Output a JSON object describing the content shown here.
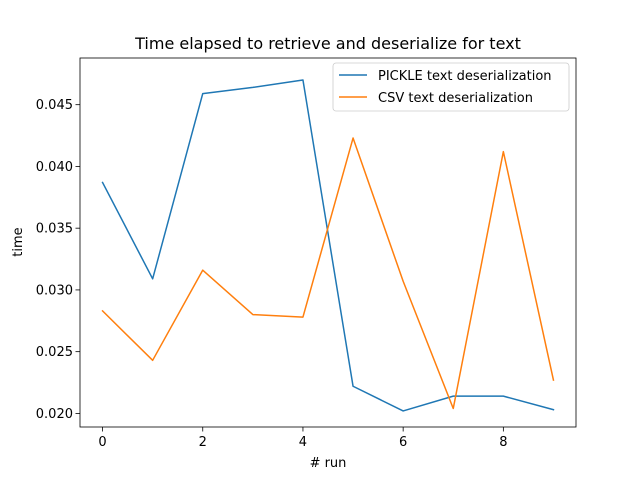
{
  "chart_data": {
    "type": "line",
    "title": "Time elapsed to retrieve and deserialize for text",
    "xlabel": "# run",
    "ylabel": "time",
    "x": [
      0,
      1,
      2,
      3,
      4,
      5,
      6,
      7,
      8,
      9
    ],
    "xlim": [
      -0.45,
      9.45
    ],
    "ylim": [
      0.0189,
      0.04878
    ],
    "xticks": [
      0,
      2,
      4,
      6,
      8
    ],
    "xtick_labels": [
      "0",
      "2",
      "4",
      "6",
      "8"
    ],
    "yticks": [
      0.02,
      0.025,
      0.03,
      0.035,
      0.04,
      0.045
    ],
    "ytick_labels": [
      "0.020",
      "0.025",
      "0.030",
      "0.035",
      "0.040",
      "0.045"
    ],
    "grid": false,
    "legend_position": "upper right",
    "series": [
      {
        "name": "PICKLE text deserialization",
        "color": "#1f77b4",
        "values": [
          0.0387,
          0.0309,
          0.0459,
          0.0464,
          0.047,
          0.0222,
          0.0202,
          0.0214,
          0.0214,
          0.0203
        ]
      },
      {
        "name": "CSV text deserialization",
        "color": "#ff7f0e",
        "values": [
          0.0283,
          0.0243,
          0.0316,
          0.028,
          0.0278,
          0.0423,
          0.0307,
          0.0204,
          0.0412,
          0.0227
        ]
      }
    ]
  }
}
